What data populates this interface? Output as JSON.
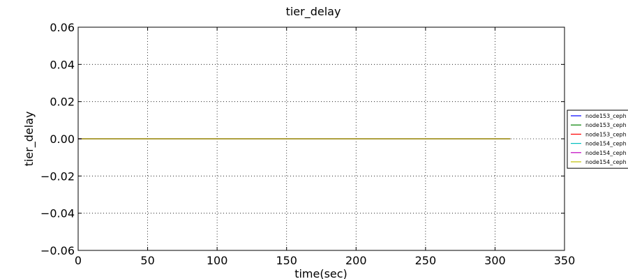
{
  "chart_data": {
    "type": "line",
    "title": "tier_delay",
    "xlabel": "time(sec)",
    "ylabel": "tier_delay",
    "xlim": [
      0,
      350
    ],
    "ylim": [
      -0.06,
      0.06
    ],
    "xticks": [
      0,
      50,
      100,
      150,
      200,
      250,
      300,
      350
    ],
    "yticks": [
      0.06,
      0.04,
      0.02,
      0.0,
      -0.02,
      -0.04,
      -0.06
    ],
    "xtick_labels": [
      "0",
      "50",
      "100",
      "150",
      "200",
      "250",
      "300",
      "350"
    ],
    "ytick_labels": [
      "0.06",
      "0.04",
      "0.02",
      "0.00",
      "−0.02",
      "−0.04",
      "−0.06"
    ],
    "grid": true,
    "legend_position": "right",
    "series": [
      {
        "name": "node153_ceph",
        "color": "#0000ff",
        "x": [
          0,
          311
        ],
        "y": [
          0,
          0
        ]
      },
      {
        "name": "node153_ceph",
        "color": "#008000",
        "x": [
          0,
          311
        ],
        "y": [
          0,
          0
        ]
      },
      {
        "name": "node153_ceph",
        "color": "#ff0000",
        "x": [
          0,
          311
        ],
        "y": [
          0,
          0
        ]
      },
      {
        "name": "node154_ceph",
        "color": "#00bfbf",
        "x": [
          0,
          311
        ],
        "y": [
          0,
          0
        ]
      },
      {
        "name": "node154_ceph",
        "color": "#bf00bf",
        "x": [
          0,
          311
        ],
        "y": [
          0,
          0
        ]
      },
      {
        "name": "node154_ceph",
        "color": "#bfbf00",
        "x": [
          0,
          311
        ],
        "y": [
          0,
          0
        ]
      }
    ]
  }
}
